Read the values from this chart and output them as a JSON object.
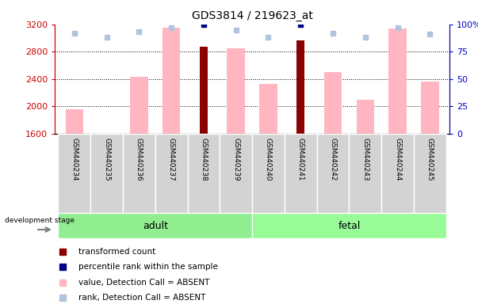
{
  "title": "GDS3814 / 219623_at",
  "samples": [
    "GSM440234",
    "GSM440235",
    "GSM440236",
    "GSM440237",
    "GSM440238",
    "GSM440239",
    "GSM440240",
    "GSM440241",
    "GSM440242",
    "GSM440243",
    "GSM440244",
    "GSM440245"
  ],
  "groups": [
    "adult",
    "adult",
    "adult",
    "adult",
    "adult",
    "adult",
    "fetal",
    "fetal",
    "fetal",
    "fetal",
    "fetal",
    "fetal"
  ],
  "transformed_count": [
    null,
    null,
    null,
    null,
    2870,
    null,
    null,
    2960,
    null,
    null,
    null,
    null
  ],
  "percentile_rank": [
    null,
    null,
    null,
    null,
    100,
    null,
    null,
    100,
    null,
    null,
    null,
    null
  ],
  "value_absent": [
    1960,
    1590,
    2430,
    3150,
    null,
    2855,
    2330,
    null,
    2500,
    2100,
    3140,
    2360
  ],
  "rank_absent": [
    92,
    88,
    93,
    97,
    null,
    95,
    88,
    null,
    92,
    88,
    97,
    91
  ],
  "ylim_left": [
    1600,
    3200
  ],
  "ylim_right": [
    0,
    100
  ],
  "yticks_left": [
    1600,
    2000,
    2400,
    2800,
    3200
  ],
  "yticks_right": [
    0,
    25,
    50,
    75,
    100
  ],
  "color_transformed": "#8B0000",
  "color_percentile": "#00008B",
  "color_value_absent": "#FFB6C1",
  "color_rank_absent": "#B0C4DE",
  "color_adult_bg": "#90EE90",
  "color_fetal_bg": "#98FB98",
  "color_sample_bg": "#D3D3D3",
  "left_axis_color": "#CC0000",
  "right_axis_color": "#0000CC",
  "legend_items": [
    [
      "#8B0000",
      "transformed count"
    ],
    [
      "#00008B",
      "percentile rank within the sample"
    ],
    [
      "#FFB6C1",
      "value, Detection Call = ABSENT"
    ],
    [
      "#B0C4DE",
      "rank, Detection Call = ABSENT"
    ]
  ]
}
